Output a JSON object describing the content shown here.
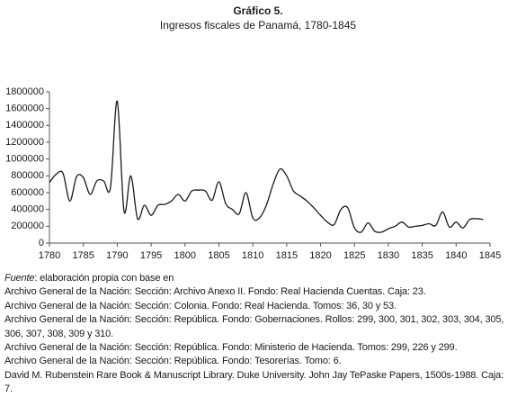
{
  "chart_data": {
    "type": "line",
    "title": "Gráfico 5.",
    "subtitle": "Ingresos fiscales de Panamá, 1780-1845",
    "x": [
      1780,
      1781,
      1782,
      1783,
      1784,
      1785,
      1786,
      1787,
      1788,
      1789,
      1790,
      1791,
      1792,
      1793,
      1794,
      1795,
      1796,
      1797,
      1798,
      1799,
      1800,
      1801,
      1802,
      1803,
      1804,
      1805,
      1806,
      1807,
      1808,
      1809,
      1810,
      1811,
      1812,
      1813,
      1814,
      1815,
      1816,
      1817,
      1818,
      1819,
      1820,
      1821,
      1822,
      1823,
      1824,
      1825,
      1826,
      1827,
      1828,
      1829,
      1830,
      1831,
      1832,
      1833,
      1834,
      1835,
      1836,
      1837,
      1838,
      1839,
      1840,
      1841,
      1842,
      1843,
      1844
    ],
    "values": [
      720000,
      820000,
      830000,
      500000,
      790000,
      780000,
      580000,
      740000,
      740000,
      660000,
      1690000,
      380000,
      800000,
      290000,
      450000,
      330000,
      450000,
      460000,
      500000,
      580000,
      500000,
      620000,
      630000,
      620000,
      510000,
      730000,
      470000,
      400000,
      350000,
      600000,
      300000,
      300000,
      450000,
      700000,
      880000,
      800000,
      620000,
      560000,
      500000,
      420000,
      330000,
      250000,
      220000,
      400000,
      420000,
      180000,
      130000,
      240000,
      140000,
      130000,
      170000,
      200000,
      250000,
      190000,
      200000,
      210000,
      230000,
      210000,
      370000,
      190000,
      250000,
      180000,
      280000,
      290000,
      280000
    ],
    "color": "#1a1a1a",
    "xlim": [
      1780,
      1845
    ],
    "xticks": [
      1780,
      1785,
      1790,
      1795,
      1800,
      1805,
      1810,
      1815,
      1820,
      1825,
      1830,
      1835,
      1840,
      1845
    ],
    "ylim": [
      0,
      1800000
    ],
    "yticks": [
      0,
      200000,
      400000,
      600000,
      800000,
      1000000,
      1200000,
      1400000,
      1600000,
      1800000
    ],
    "grid": false
  },
  "notes": {
    "source_label": "Fuente",
    "source_text": ": elaboración propia con base en",
    "lines": [
      "Archivo General de la Nación: Sección: Archivo Anexo II. Fondo: Real Hacienda Cuentas. Caja: 23.",
      "Archivo General de la Nación: Sección: Colonia. Fondo: Real Hacienda. Tomos: 36, 30 y 53.",
      "Archivo General de la Nación: Sección: República. Fondo: Gobernaciones. Rollos: 299, 300, 301, 302, 303, 304, 305, 306, 307, 308, 309 y 310.",
      "Archivo General de la Nación: Sección: República. Fondo: Ministerio de Hacienda. Tomos: 299, 226 y 299.",
      "Archivo General de la Nación: Sección: República. Fondo: Tesorerías. Tomo: 6.",
      "David M. Rubenstein Rare Book & Manuscript Library. Duke University. John Jay TePaske Papers, 1500s-1988. Caja: 7."
    ]
  }
}
